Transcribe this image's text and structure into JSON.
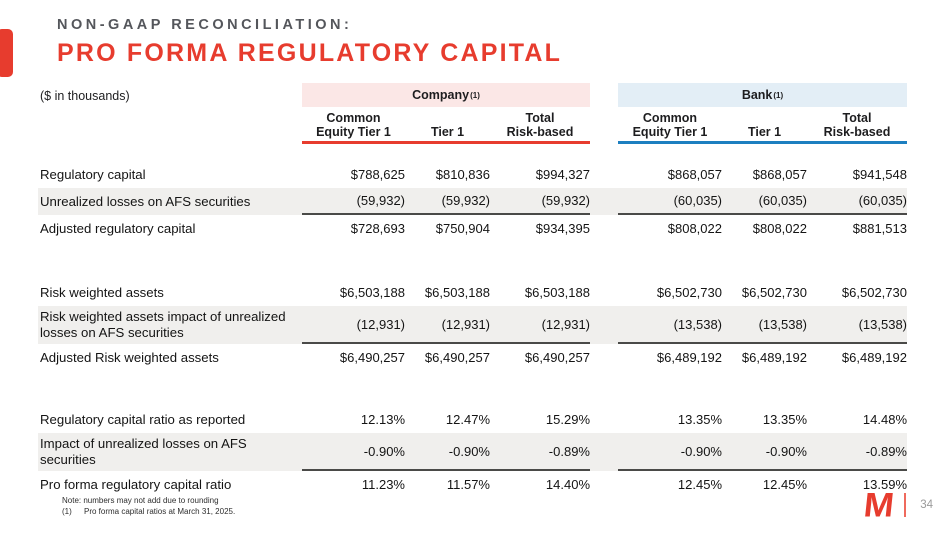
{
  "slide": {
    "eyebrow": "NON-GAAP RECONCILIATION:",
    "title": "PRO FORMA REGULATORY CAPITAL",
    "units": "($ in thousands)",
    "page_number": "34"
  },
  "brand": {
    "logo_letter": "M",
    "accent_red": "#e73c2e",
    "accent_blue": "#1d7fc0"
  },
  "table": {
    "groups": [
      {
        "name": "Company",
        "footnote": "(1)"
      },
      {
        "name": "Bank",
        "footnote": "(1)"
      }
    ],
    "subheaders": [
      {
        "line1": "Common",
        "line2": "Equity Tier 1"
      },
      {
        "line1": "",
        "line2": "Tier 1"
      },
      {
        "line1": "Total",
        "line2": "Risk-based"
      }
    ],
    "rows": [
      {
        "label": "Regulatory capital",
        "company": [
          "$788,625",
          "$810,836",
          "$994,327"
        ],
        "bank": [
          "$868,057",
          "$868,057",
          "$941,548"
        ]
      },
      {
        "label": "Unrealized losses on AFS securities",
        "company": [
          "(59,932)",
          "(59,932)",
          "(59,932)"
        ],
        "bank": [
          "(60,035)",
          "(60,035)",
          "(60,035)"
        ]
      },
      {
        "label": "Adjusted regulatory capital",
        "company": [
          "$728,693",
          "$750,904",
          "$934,395"
        ],
        "bank": [
          "$808,022",
          "$808,022",
          "$881,513"
        ]
      },
      {
        "label": "Risk weighted assets",
        "company": [
          "$6,503,188",
          "$6,503,188",
          "$6,503,188"
        ],
        "bank": [
          "$6,502,730",
          "$6,502,730",
          "$6,502,730"
        ]
      },
      {
        "label": "Risk weighted assets impact of unrealized losses on AFS securities",
        "company": [
          "(12,931)",
          "(12,931)",
          "(12,931)"
        ],
        "bank": [
          "(13,538)",
          "(13,538)",
          "(13,538)"
        ]
      },
      {
        "label": "Adjusted Risk weighted assets",
        "company": [
          "$6,490,257",
          "$6,490,257",
          "$6,490,257"
        ],
        "bank": [
          "$6,489,192",
          "$6,489,192",
          "$6,489,192"
        ]
      },
      {
        "label": "Regulatory capital ratio as reported",
        "company": [
          "12.13%",
          "12.47%",
          "15.29%"
        ],
        "bank": [
          "13.35%",
          "13.35%",
          "14.48%"
        ]
      },
      {
        "label": "Impact of unrealized losses on AFS securities",
        "company": [
          "-0.90%",
          "-0.90%",
          "-0.89%"
        ],
        "bank": [
          "-0.90%",
          "-0.90%",
          "-0.89%"
        ]
      },
      {
        "label": "Pro forma regulatory capital ratio",
        "company": [
          "11.23%",
          "11.57%",
          "14.40%"
        ],
        "bank": [
          "12.45%",
          "12.45%",
          "13.59%"
        ]
      }
    ]
  },
  "footnotes": {
    "note": "Note: numbers may not add due to rounding",
    "fn1_marker": "(1)",
    "fn1_text": "Pro forma capital ratios at March 31, 2025."
  }
}
